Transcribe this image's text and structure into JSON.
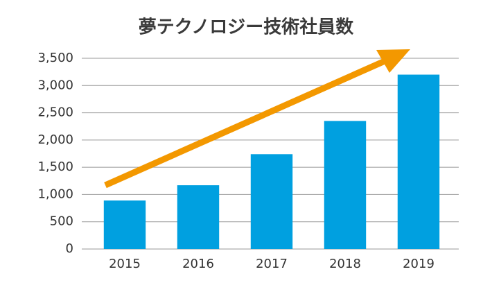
{
  "chart_data": {
    "type": "bar",
    "title": "夢テクノロジー技術社員数",
    "categories": [
      "2015",
      "2016",
      "2017",
      "2018",
      "2019"
    ],
    "values": [
      890,
      1170,
      1740,
      2350,
      3200
    ],
    "color": "#00a0e0",
    "ylim": [
      0,
      3500
    ],
    "yticks": [
      0,
      500,
      {
        "value": 1000,
        "label": "1,000"
      },
      {
        "value": 1500,
        "label": "1,500"
      },
      {
        "value": 2000,
        "label": "2,000"
      },
      {
        "value": 2500,
        "label": "2,500"
      },
      {
        "value": 3000,
        "label": "3,000"
      },
      {
        "value": 3500,
        "label": "3,500"
      }
    ],
    "grid": true
  }
}
